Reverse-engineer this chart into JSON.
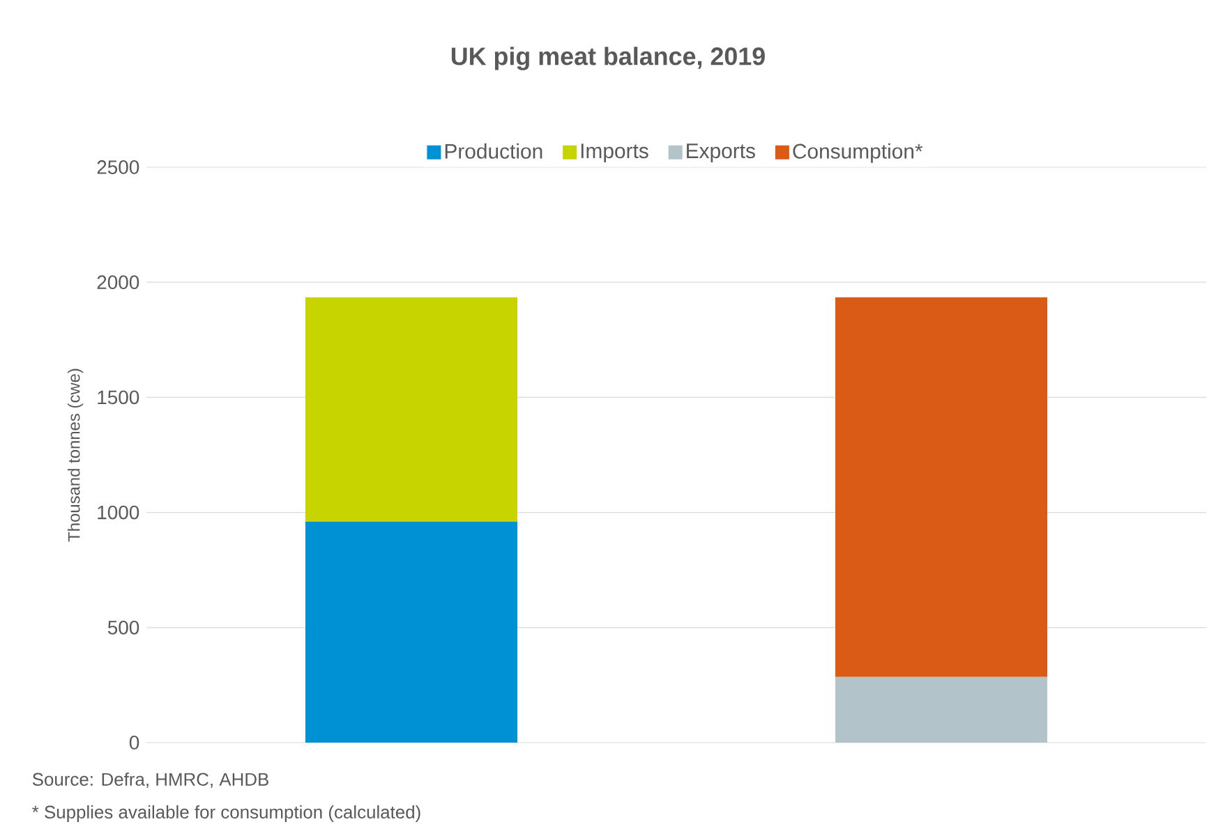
{
  "chart_data": {
    "type": "bar",
    "title": "UK pig meat balance, 2019",
    "ylabel": "Thousand tonnes (cwe)",
    "categories": [
      null,
      null
    ],
    "stacked": true,
    "series": [
      {
        "name": "Production",
        "color": "#0090d4",
        "values": [
          960,
          null
        ]
      },
      {
        "name": "Imports",
        "color": "#c8d400",
        "values": [
          975,
          null
        ]
      },
      {
        "name": "Exports",
        "color": "#b2c3ca",
        "values": [
          null,
          285
        ]
      },
      {
        "name": "Consumption*",
        "color": "#d95b16",
        "values": [
          null,
          1650
        ]
      }
    ],
    "ylim": [
      0,
      2500
    ],
    "yticks": [
      0,
      500,
      1000,
      1500,
      2000,
      2500
    ],
    "grid": "y",
    "legend": "top",
    "annotations": [
      "Source: Defra, HMRC, AHDB",
      "* Supplies available for consumption (calculated)"
    ]
  }
}
